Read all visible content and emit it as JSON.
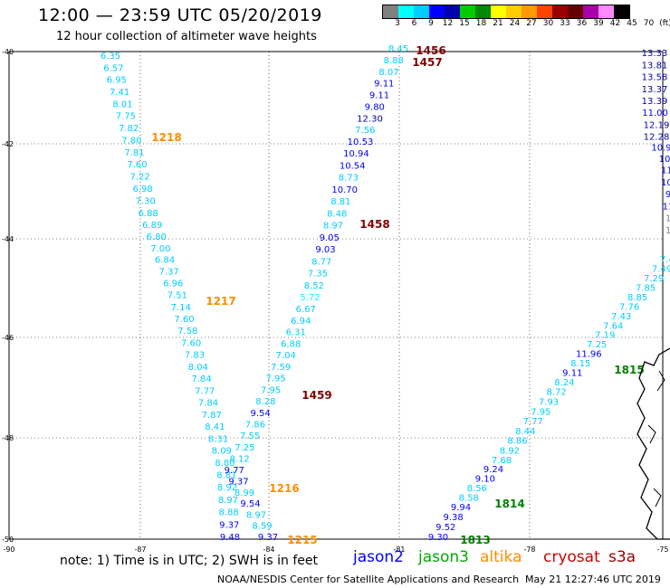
{
  "header": {
    "title": "12:00 — 23:59 UTC 05/20/2019",
    "subtitle": "12 hour collection of altimeter wave heights"
  },
  "legend": {
    "colors": [
      "#808080",
      "#00ffff",
      "#00ccff",
      "#0000ff",
      "#0000aa",
      "#00cc00",
      "#008800",
      "#ffff00",
      "#ffcc00",
      "#ff9900",
      "#ff4400",
      "#990000",
      "#660000",
      "#aa00aa",
      "#ff88ff",
      "#000000"
    ],
    "labels": [
      "3",
      "6",
      "9",
      "12",
      "15",
      "18",
      "21",
      "24",
      "27",
      "30",
      "33",
      "36",
      "39",
      "42",
      "45",
      "70",
      "(ft)"
    ]
  },
  "map": {
    "lat_labels": [
      "-40",
      "-42",
      "-44",
      "-46",
      "-48",
      "-50"
    ],
    "lon_labels": [
      "-90",
      "-87",
      "-84",
      "-81",
      "-78",
      "-75"
    ]
  },
  "tracks": [
    {
      "name": "track-left",
      "values": [
        "6.35",
        "6.57",
        "6.95",
        "7.41",
        "8.01",
        "7.75",
        "7.82",
        "7.80",
        "7.81",
        "7.60",
        "7.22",
        "6.98",
        "7.30",
        "6.88",
        "6.89",
        "6.80",
        "7.00",
        "6.84",
        "7.37",
        "6.96",
        "7.51",
        "7.14",
        "7.60",
        "7.58",
        "7.60",
        "7.83",
        "8.04",
        "7.84",
        "7.77",
        "7.84",
        "7.87",
        "8.41",
        "8.31",
        "8.09",
        "8.80",
        "8.81",
        "8.92",
        "8.97",
        "8.88",
        "9.37",
        "9.48"
      ]
    },
    {
      "name": "track-middle",
      "values": [
        "9.37",
        "8.59",
        "8.97",
        "9.54",
        "8.99",
        "9.37",
        "9.77",
        "8.12",
        "7.25",
        "7.55",
        "7.86",
        "9.54",
        "8.28",
        "7.95",
        "7.95",
        "7.59",
        "7.04",
        "6.88",
        "6.31",
        "6.94",
        "6.67",
        "5.72",
        "8.52",
        "7.35",
        "8.77",
        "9.03",
        "9.05",
        "8.97",
        "8.48",
        "8.81",
        "10.70",
        "8.73",
        "10.54",
        "10.94",
        "10.53",
        "7.56",
        "12.30",
        "9.80",
        "9.11",
        "9.11",
        "8.07",
        "8.88",
        "8.45"
      ]
    },
    {
      "name": "track-right-lower",
      "values": [
        "9.30",
        "9.52",
        "9.38",
        "9.94",
        "8.58",
        "8.56",
        "9.10",
        "9.24",
        "7.68",
        "8.92",
        "8.86",
        "8.44",
        "7.77",
        "7.95",
        "7.93",
        "8.72",
        "8.24",
        "9.11",
        "8.15",
        "11.96",
        "7.25",
        "7.19",
        "7.64",
        "7.43",
        "7.76",
        "8.85",
        "7.85",
        "7.29",
        "7.49",
        "7.40"
      ]
    },
    {
      "name": "track-far-right",
      "values": [
        "13.33",
        "13.81",
        "13.58",
        "13.37",
        "13.39",
        "11.00",
        "12.19",
        "12.28",
        "10.9",
        "10.",
        "11.",
        "10.",
        "9",
        "11",
        "1",
        "1"
      ]
    }
  ],
  "pass_labels": [
    {
      "text": "1218",
      "color": "#ff8c00"
    },
    {
      "text": "1217",
      "color": "#ff8c00"
    },
    {
      "text": "1216",
      "color": "#ff8c00"
    },
    {
      "text": "1215",
      "color": "#ff8c00"
    },
    {
      "text": "1456",
      "color": "#800000"
    },
    {
      "text": "1457",
      "color": "#800000"
    },
    {
      "text": "1458",
      "color": "#800000"
    },
    {
      "text": "1459",
      "color": "#800000"
    },
    {
      "text": "1813",
      "color": "#008000"
    },
    {
      "text": "1814",
      "color": "#008000"
    },
    {
      "text": "1815",
      "color": "#008000"
    }
  ],
  "note": "note:  1) Time is in UTC;  2) SWH is in feet",
  "satellites": [
    {
      "text": "jason2",
      "color": "#0000ff"
    },
    {
      "text": "jason3",
      "color": "#00aa00"
    },
    {
      "text": "altika",
      "color": "#ff8c00"
    },
    {
      "text": "cryosat",
      "color": "#cc0000"
    },
    {
      "text": "s3a",
      "color": "#990000"
    }
  ],
  "footer": {
    "credit": "NOAA/NESDIS Center for Satellite Applications and Research",
    "timestamp": "May 21 12:27:46 UTC 2019"
  }
}
